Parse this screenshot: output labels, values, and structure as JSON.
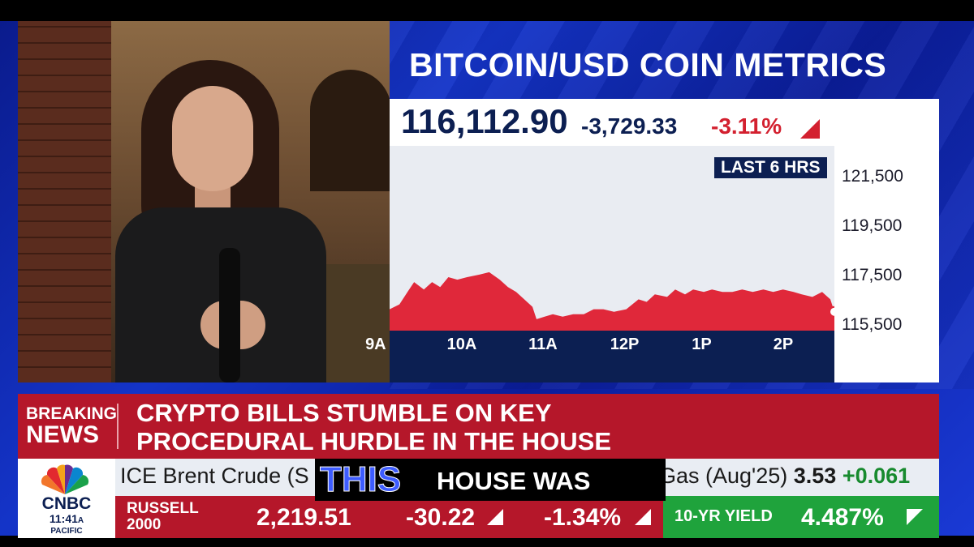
{
  "chart_title": "BITCOIN/USD COIN METRICS",
  "quote": {
    "price": "116,112.90",
    "change": "-3,729.33",
    "percent": "-3.11%",
    "range_label": "LAST 6 HRS",
    "down_color": "#d3202f",
    "navy": "#0c1f52"
  },
  "chart_data": {
    "type": "area",
    "title": "BITCOIN/USD COIN METRICS",
    "xlabel": "",
    "ylabel": "",
    "x_ticks": [
      "9A",
      "10A",
      "11A",
      "12P",
      "1P",
      "2P"
    ],
    "y_ticks": [
      "121,500",
      "119,500",
      "117,500",
      "115,500"
    ],
    "ylim": [
      115500,
      121500
    ],
    "grid": false,
    "series": [
      {
        "color": "#e0283a",
        "points": [
          [
            9.0,
            116200
          ],
          [
            9.12,
            116400
          ],
          [
            9.22,
            116900
          ],
          [
            9.3,
            117300
          ],
          [
            9.42,
            117000
          ],
          [
            9.52,
            117300
          ],
          [
            9.62,
            117100
          ],
          [
            9.72,
            117500
          ],
          [
            9.83,
            117400
          ],
          [
            9.95,
            117500
          ],
          [
            10.1,
            117600
          ],
          [
            10.22,
            117700
          ],
          [
            10.35,
            117400
          ],
          [
            10.45,
            117100
          ],
          [
            10.55,
            116900
          ],
          [
            10.65,
            116600
          ],
          [
            10.75,
            116300
          ],
          [
            10.8,
            115800
          ],
          [
            10.9,
            115900
          ],
          [
            11.0,
            116000
          ],
          [
            11.12,
            115900
          ],
          [
            11.25,
            116000
          ],
          [
            11.38,
            116000
          ],
          [
            11.5,
            116200
          ],
          [
            11.62,
            116200
          ],
          [
            11.75,
            116100
          ],
          [
            11.9,
            116200
          ],
          [
            12.05,
            116600
          ],
          [
            12.15,
            116500
          ],
          [
            12.25,
            116800
          ],
          [
            12.4,
            116700
          ],
          [
            12.5,
            117000
          ],
          [
            12.62,
            116800
          ],
          [
            12.72,
            117000
          ],
          [
            12.85,
            116900
          ],
          [
            12.95,
            117000
          ],
          [
            13.08,
            116900
          ],
          [
            13.2,
            116900
          ],
          [
            13.32,
            117000
          ],
          [
            13.45,
            116900
          ],
          [
            13.58,
            117000
          ],
          [
            13.7,
            116900
          ],
          [
            13.82,
            117000
          ],
          [
            13.95,
            116900
          ],
          [
            14.05,
            116800
          ],
          [
            14.18,
            116700
          ],
          [
            14.3,
            116900
          ],
          [
            14.4,
            116600
          ],
          [
            14.45,
            116100
          ]
        ]
      }
    ]
  },
  "breaking": {
    "label_top": "BREAKING",
    "label_bottom": "NEWS",
    "headline_line1": "CRYPTO BILLS STUMBLE ON KEY",
    "headline_line2": "PROCEDURAL HURDLE IN THE HOUSE"
  },
  "logo": {
    "name": "CNBC",
    "time": "11:41",
    "ampm": "A",
    "zone": "PACIFIC"
  },
  "ticker_top": {
    "left_text": "ICE Brent Crude (S",
    "right_name": "Gas (Aug'25)",
    "right_value": "3.53",
    "right_change": "+0.061"
  },
  "index": {
    "name_line1": "RUSSELL",
    "name_line2": "2000",
    "value": "2,219.51",
    "change": "-30.22",
    "percent": "-1.34%"
  },
  "yield": {
    "name": "10-YR YIELD",
    "value": "4.487%"
  },
  "caption": {
    "highlight": "THIS",
    "rest": "HOUSE WAS"
  }
}
